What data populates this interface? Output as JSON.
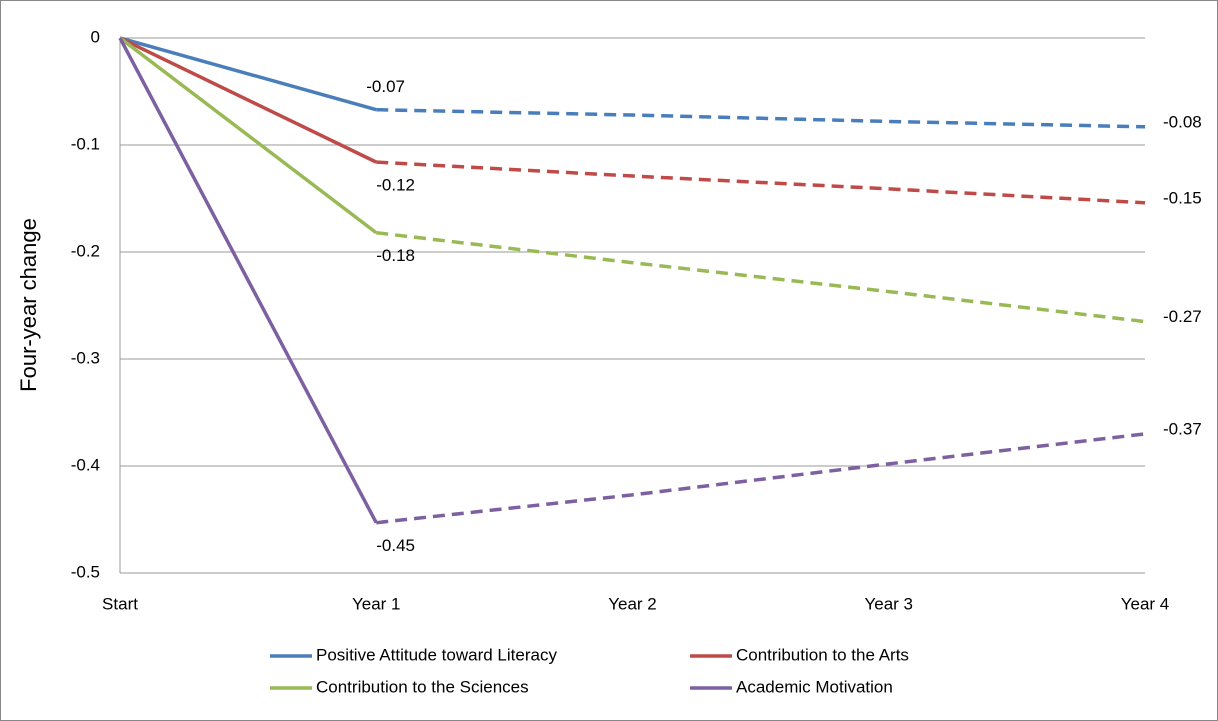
{
  "chart_data": {
    "type": "line",
    "y_label": "Four-year change",
    "categories": [
      "Start",
      "Year 1",
      "Year 2",
      "Year 3",
      "Year 4"
    ],
    "ylim": [
      -0.5,
      0
    ],
    "yticks": [
      0,
      -0.1,
      -0.2,
      -0.3,
      -0.4,
      -0.5
    ],
    "grid": true,
    "dashed_from_index": 1,
    "legend": "bottom",
    "series": [
      {
        "name": "Positive Attitude toward Literacy",
        "color": "#4a7ebb",
        "values": [
          0,
          -0.067,
          -0.072,
          -0.078,
          -0.083
        ],
        "value_labels": [
          null,
          "-0.07",
          null,
          null,
          "-0.08"
        ]
      },
      {
        "name": "Contribution to the Arts",
        "color": "#be4b48",
        "values": [
          0,
          -0.116,
          -0.129,
          -0.141,
          -0.154
        ],
        "value_labels": [
          null,
          "-0.12",
          null,
          null,
          "-0.15"
        ]
      },
      {
        "name": "Contribution to the Sciences",
        "color": "#98b954",
        "values": [
          0,
          -0.182,
          -0.21,
          -0.237,
          -0.265
        ],
        "value_labels": [
          null,
          "-0.18",
          null,
          null,
          "-0.27"
        ]
      },
      {
        "name": "Academic Motivation",
        "color": "#7d60a0",
        "values": [
          0,
          -0.453,
          -0.427,
          -0.398,
          -0.37
        ],
        "value_labels": [
          null,
          "-0.45",
          null,
          null,
          "-0.37"
        ]
      }
    ]
  }
}
